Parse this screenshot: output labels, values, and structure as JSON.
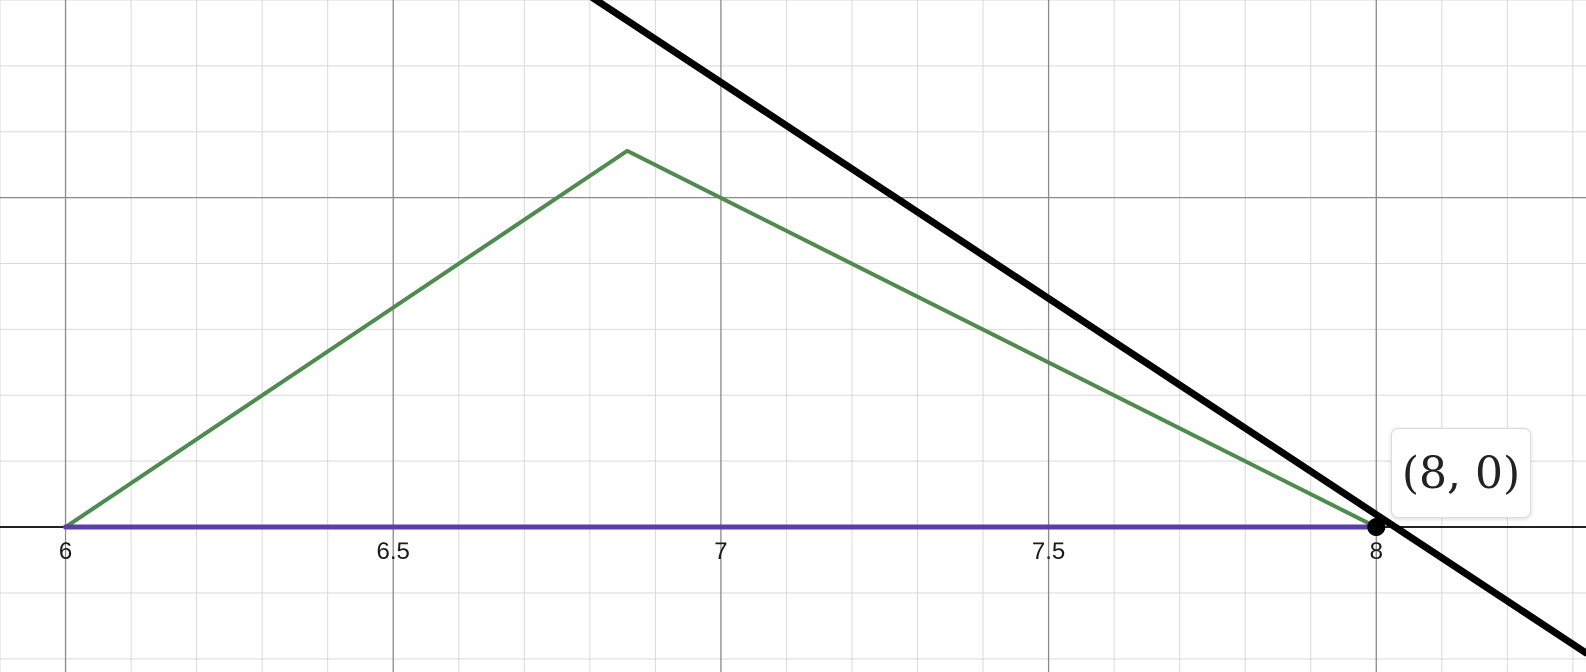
{
  "chart_data": {
    "type": "line",
    "title": "",
    "xlabel": "",
    "ylabel": "",
    "xlim": [
      5.9,
      8.32
    ],
    "ylim": [
      -0.22,
      0.8
    ],
    "grid": true,
    "x_ticks": [
      {
        "value": 6,
        "label": "6"
      },
      {
        "value": 6.5,
        "label": "6.5"
      },
      {
        "value": 7,
        "label": "7"
      },
      {
        "value": 7.5,
        "label": "7.5"
      },
      {
        "value": 8,
        "label": "8"
      }
    ],
    "series": [
      {
        "color": "#4f8a4f",
        "style": "line",
        "width": 4,
        "x": [
          6,
          6.857,
          8
        ],
        "y": [
          0,
          0.571,
          0
        ]
      },
      {
        "color": "#5b3fa6",
        "style": "line",
        "width": 5,
        "x": [
          6,
          8
        ],
        "y": [
          0,
          0
        ]
      },
      {
        "color": "#000000",
        "style": "line",
        "width": 7,
        "x": [
          6.782,
          8.32
        ],
        "y": [
          0.818,
          -0.191
        ]
      }
    ],
    "points": [
      {
        "x": 8,
        "y": 0,
        "color": "#000000",
        "label": "(8, 0)"
      }
    ]
  }
}
